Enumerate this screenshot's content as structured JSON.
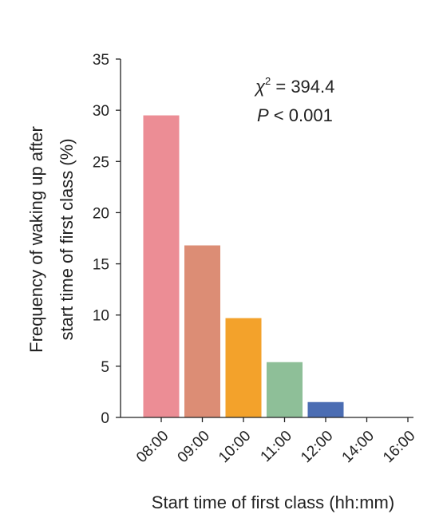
{
  "chart_data": {
    "type": "bar",
    "categories": [
      "08:00",
      "09:00",
      "10:00",
      "11:00",
      "12:00",
      "14:00",
      "16:00"
    ],
    "values": [
      29.5,
      16.8,
      9.7,
      5.4,
      1.5,
      0,
      0
    ],
    "colors": [
      "#ec8d95",
      "#dc8d75",
      "#f3a22b",
      "#8ebf98",
      "#4b6db3",
      "#ffffff",
      "#ffffff"
    ],
    "xlabel": "Start time of first class (hh:mm)",
    "ylabel_line1": "Frequency of waking up after",
    "ylabel_line2": "start time of first class (%)",
    "ylim": [
      0,
      35
    ],
    "yticks": [
      0,
      5,
      10,
      15,
      20,
      25,
      30,
      35
    ],
    "annotation": {
      "chi_symbol": "χ",
      "chi_exponent": "2",
      "chi_value": " = 394.4",
      "p_symbol": "P",
      "p_value": " < 0.001"
    },
    "grid": false,
    "legend": "none"
  }
}
